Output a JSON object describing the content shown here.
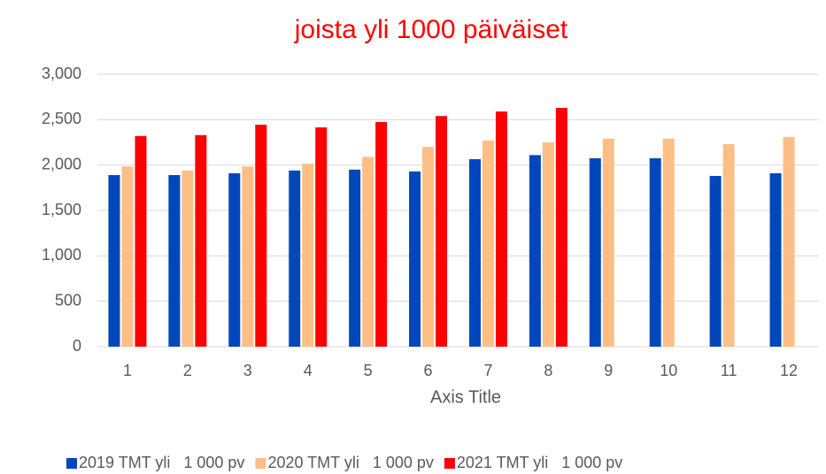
{
  "chart_data": {
    "type": "bar",
    "title": "joista yli 1000 päiväiset",
    "x_label": "Axis Title",
    "categories": [
      "1",
      "2",
      "3",
      "4",
      "5",
      "6",
      "7",
      "8",
      "9",
      "10",
      "11",
      "12"
    ],
    "series": [
      {
        "name": "2019 TMT yli   1 000 pv",
        "color": "#0047bb",
        "values": [
          1890,
          1890,
          1910,
          1940,
          1950,
          1930,
          2065,
          2110,
          2075,
          2075,
          1880,
          1910
        ]
      },
      {
        "name": "2020 TMT yli   1 000 pv",
        "color": "#fdbf85",
        "values": [
          1985,
          1940,
          1985,
          2015,
          2090,
          2200,
          2270,
          2250,
          2290,
          2290,
          2230,
          2310
        ]
      },
      {
        "name": "2021 TMT yli   1 000 pv",
        "color": "#ff0000",
        "values": [
          2320,
          2330,
          2445,
          2415,
          2475,
          2540,
          2590,
          2630,
          null,
          null,
          null,
          null
        ]
      }
    ],
    "ylim": [
      0,
      3000
    ],
    "yticks": [
      0,
      500,
      {
        "value": 1000,
        "label": "1,000"
      },
      {
        "value": 1500,
        "label": "1,500"
      },
      {
        "value": 2000,
        "label": "2,000"
      },
      {
        "value": 2500,
        "label": "2,500"
      },
      {
        "value": 3000,
        "label": "3,000"
      }
    ],
    "grid": true,
    "legend": "bottom"
  }
}
